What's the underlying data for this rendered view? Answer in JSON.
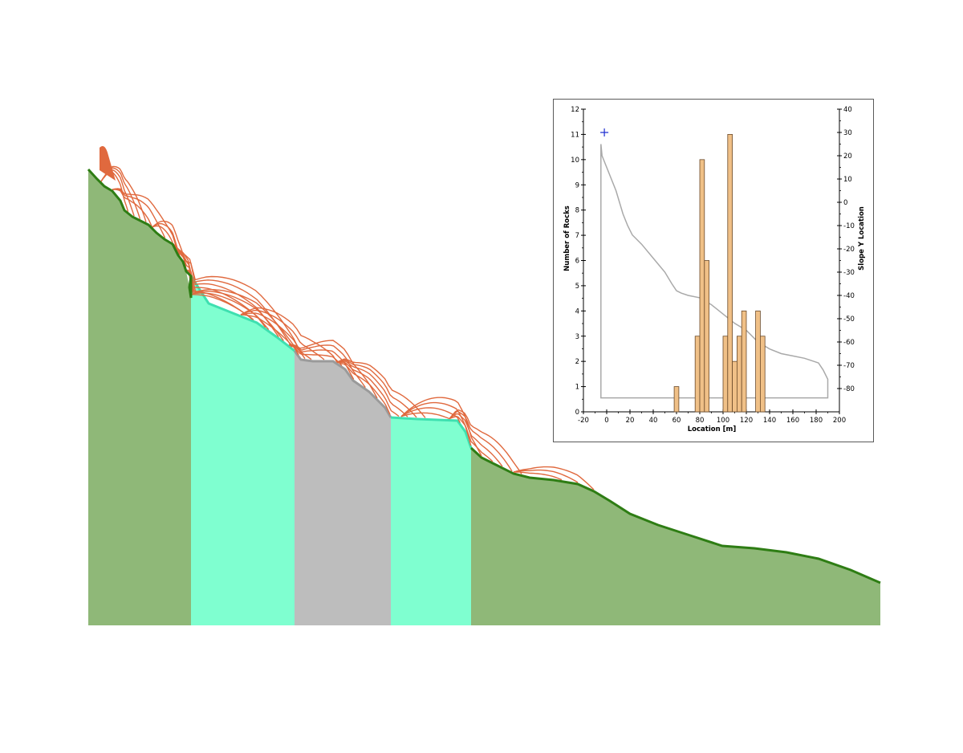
{
  "colors": {
    "ground": "#8fb878",
    "ground_edge": "#2e7d14",
    "aqua": "#7fffd0",
    "aqua_edge": "#3ee0b0",
    "grey": "#bdbdbd",
    "grey_edge": "#9a9a9a",
    "trajectories": "#e0693e",
    "bar_fill": "#f0c087",
    "bar_edge": "#6b4a2a",
    "profile_line": "#a9a9a9",
    "seeder": "#1f2fd1"
  },
  "chart_data": {
    "type": "bar",
    "xlabel": "Location [m]",
    "ylabel": "Number of Rocks",
    "y2label": "Slope Y Location",
    "xlim": [
      -20,
      200
    ],
    "ylim": [
      0,
      12
    ],
    "y2lim": [
      -90,
      40
    ],
    "xticks": [
      "-20",
      "0",
      "20",
      "40",
      "60",
      "80",
      "100",
      "120",
      "140",
      "160",
      "180",
      "200"
    ],
    "yticks": [
      "0",
      "1",
      "2",
      "3",
      "4",
      "5",
      "6",
      "7",
      "8",
      "9",
      "10",
      "11",
      "12"
    ],
    "y2ticks": [
      "-80",
      "-70",
      "-60",
      "-50",
      "-40",
      "-30",
      "-20",
      "-10",
      "0",
      "10",
      "20",
      "30",
      "40"
    ],
    "bin_width": 4,
    "bins": [
      {
        "x": 60,
        "count": 1
      },
      {
        "x": 78,
        "count": 3
      },
      {
        "x": 82,
        "count": 10
      },
      {
        "x": 86,
        "count": 6
      },
      {
        "x": 102,
        "count": 3
      },
      {
        "x": 106,
        "count": 11
      },
      {
        "x": 110,
        "count": 2
      },
      {
        "x": 114,
        "count": 3
      },
      {
        "x": 118,
        "count": 4
      },
      {
        "x": 130,
        "count": 4
      },
      {
        "x": 134,
        "count": 3
      }
    ],
    "slope_profile": {
      "x": [
        -5,
        -4,
        0,
        4,
        8,
        14,
        18,
        20,
        22,
        30,
        40,
        50,
        56,
        60,
        64,
        70,
        80,
        90,
        100,
        110,
        120,
        130,
        140,
        150,
        160,
        170,
        176,
        182,
        186,
        190,
        190
      ],
      "y": [
        25,
        20,
        15,
        10,
        5,
        -5,
        -10,
        -12,
        -14,
        -18,
        -24,
        -30,
        -35,
        -38,
        -39,
        -40,
        -41,
        -44,
        -48,
        -52,
        -55,
        -60,
        -63,
        -65,
        -66,
        -67,
        -68,
        -69,
        -72,
        -76,
        -84
      ]
    },
    "baseline_y": -84,
    "seeder": {
      "x": -2,
      "y": 30
    }
  }
}
